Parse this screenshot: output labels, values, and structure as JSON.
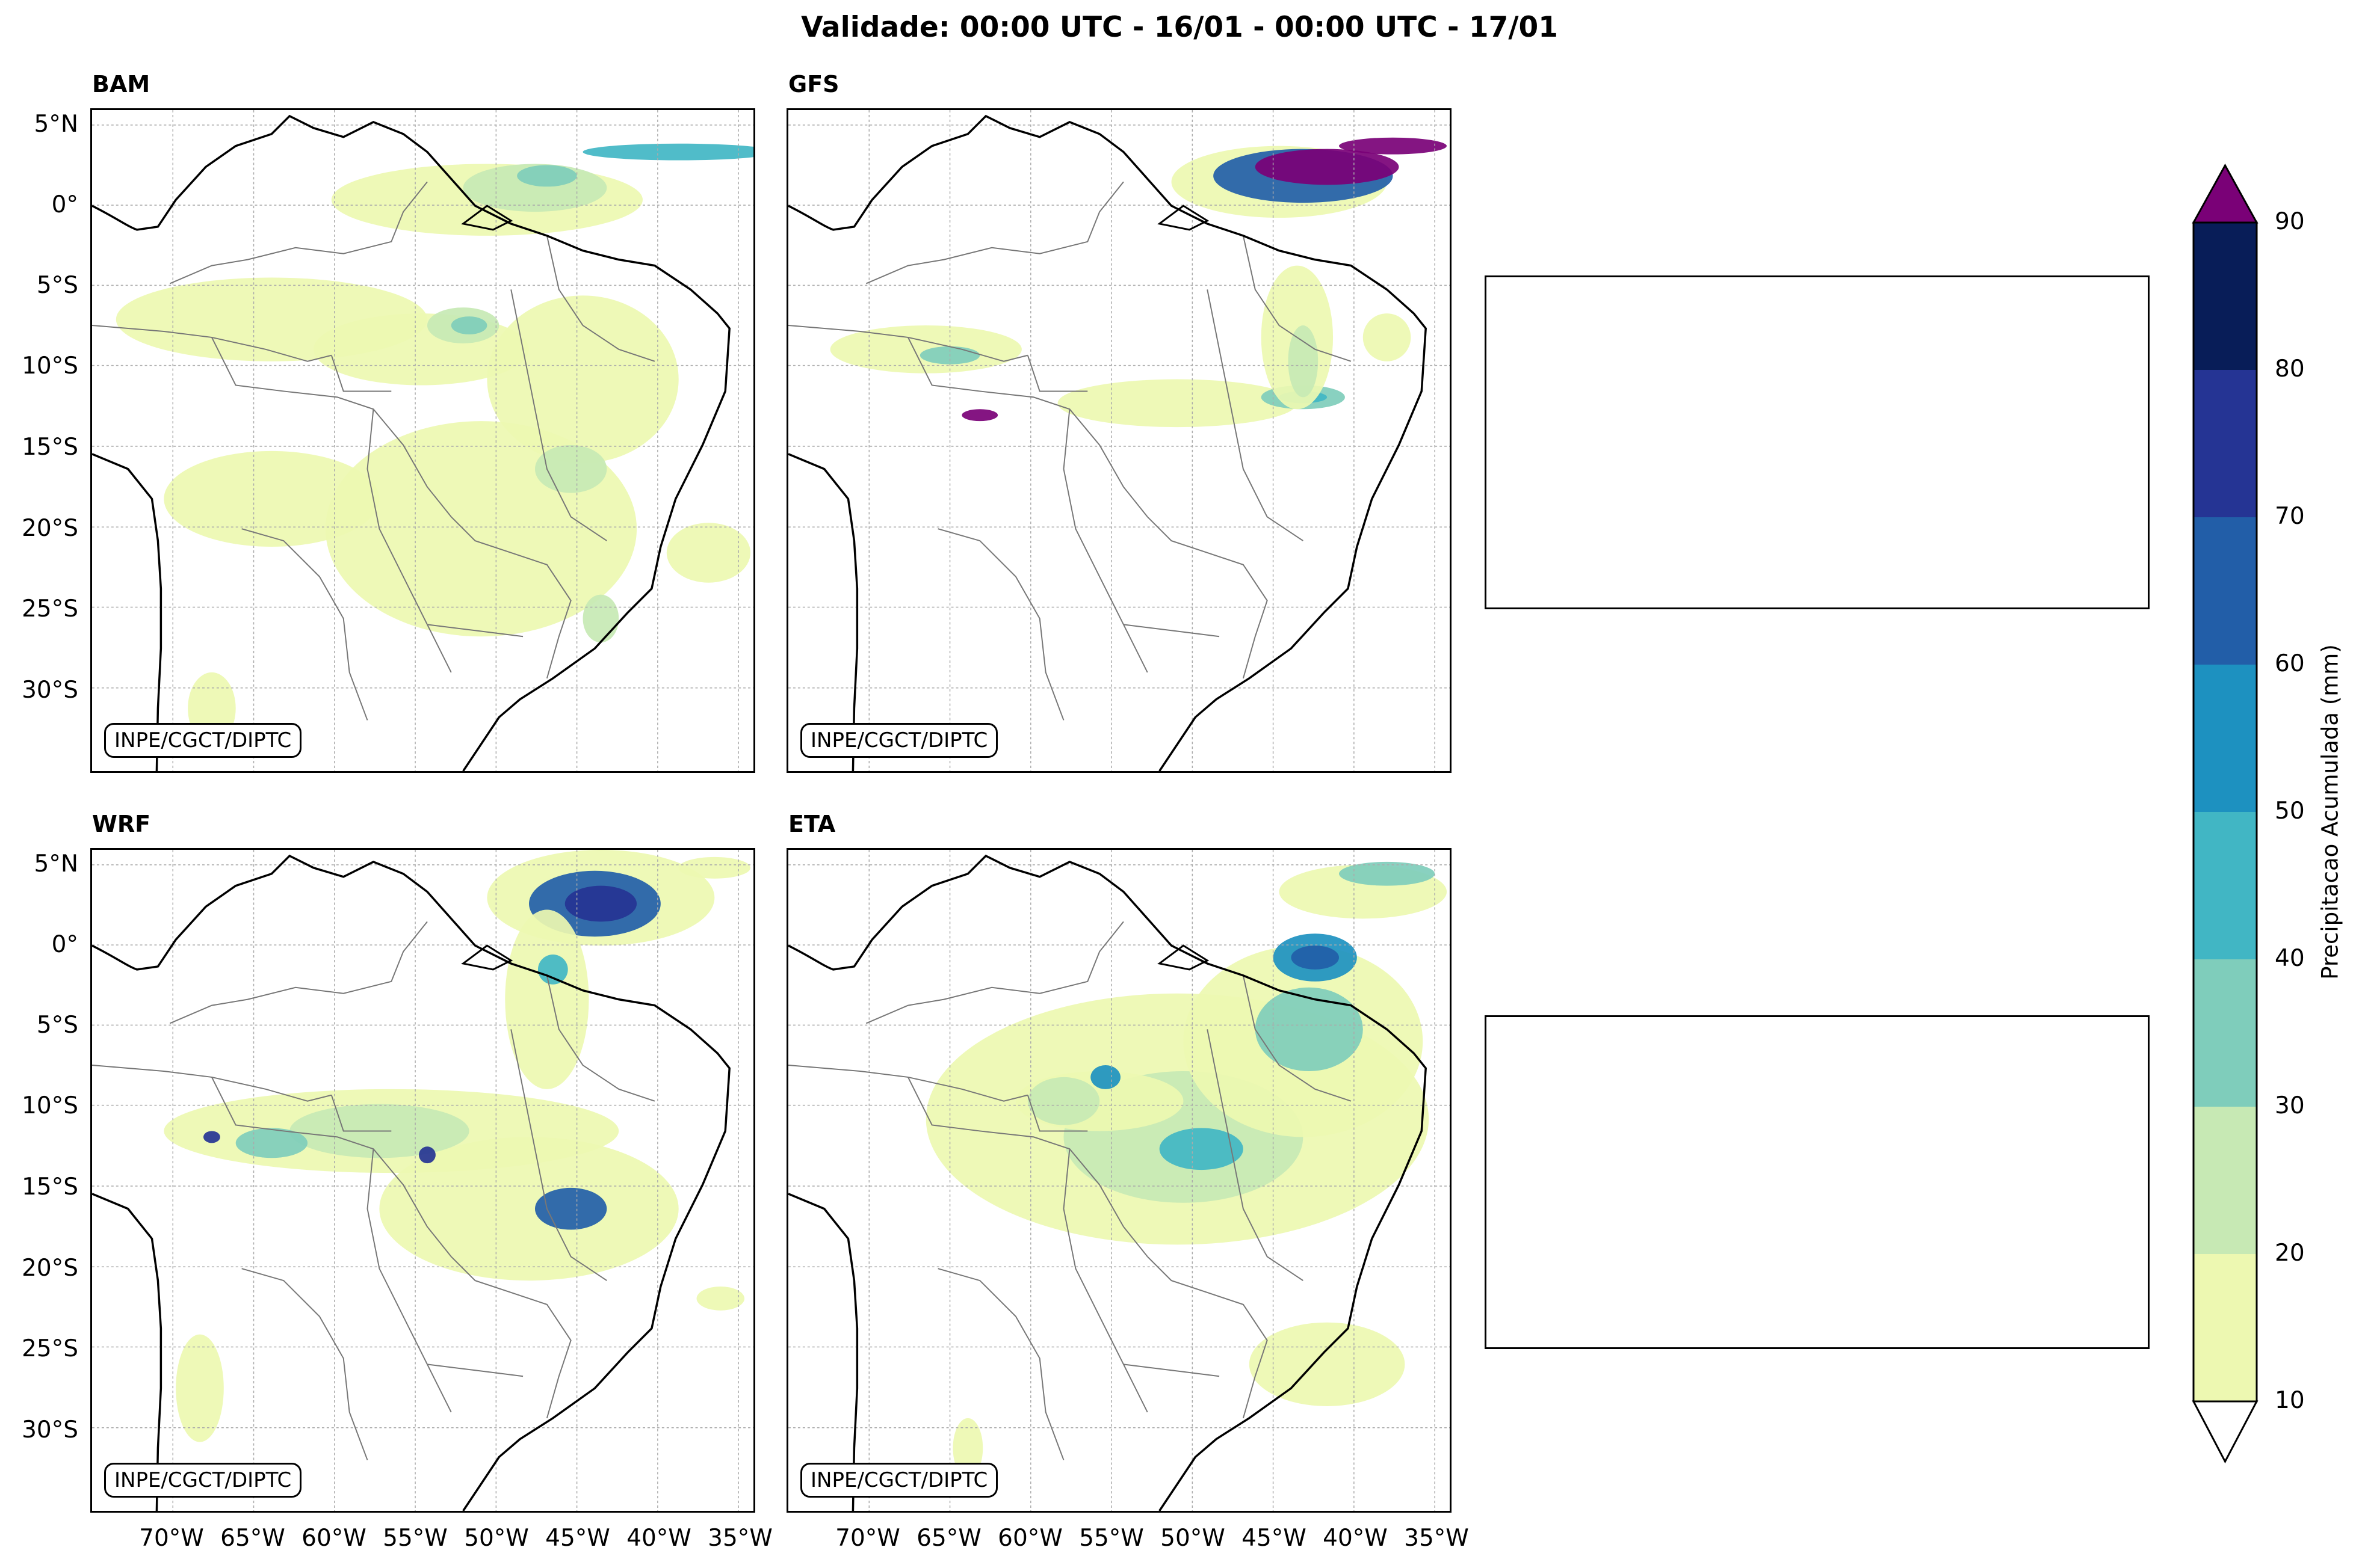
{
  "title": "Validade: 00:00 UTC - 16/01 - 00:00 UTC - 17/01",
  "panels": [
    {
      "title": "BAM",
      "credit": "INPE/CGCT/DIPTC"
    },
    {
      "title": "GFS",
      "credit": "INPE/CGCT/DIPTC"
    },
    {
      "title": "WRF",
      "credit": "INPE/CGCT/DIPTC"
    },
    {
      "title": "ETA",
      "credit": "INPE/CGCT/DIPTC"
    }
  ],
  "lat_labels": [
    "5°N",
    "0°",
    "5°S",
    "10°S",
    "15°S",
    "20°S",
    "25°S",
    "30°S"
  ],
  "lon_labels": [
    "70°W",
    "65°W",
    "60°W",
    "55°W",
    "50°W",
    "45°W",
    "40°W",
    "35°W"
  ],
  "colorbar": {
    "label": "Precipitacao Acumulada (mm)",
    "ticks": [
      "10",
      "20",
      "30",
      "40",
      "50",
      "60",
      "70",
      "80",
      "90"
    ],
    "colors": [
      "#edf8b1",
      "#c7e9b4",
      "#7fcdbb",
      "#41b6c4",
      "#1d91c0",
      "#225ea8",
      "#253494",
      "#081d58"
    ],
    "over_color": "#7a0177",
    "under_color": "#ffffff"
  },
  "map_colors": {
    "coast": "#000000",
    "border": "#777777",
    "grid": "#aaaaaa"
  }
}
